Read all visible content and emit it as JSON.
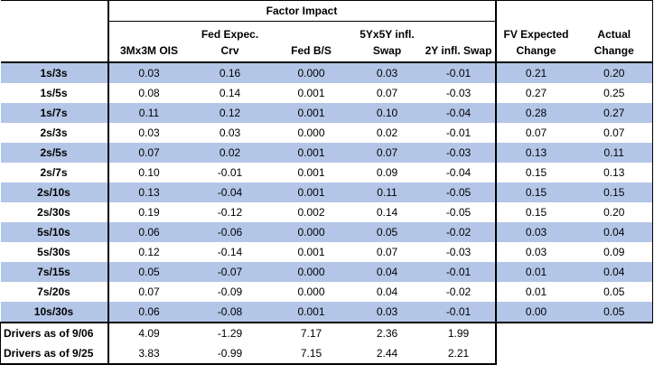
{
  "header": {
    "group_label": "Factor Impact",
    "columns": [
      "3Mx3M OIS",
      "Fed Expec.\nCrv",
      "Fed B/S",
      "5Yx5Y infl.\nSwap",
      "2Y infl. Swap",
      "FV Expected\nChange",
      "Actual\nChange"
    ],
    "col_lines": [
      [
        "3Mx3M OIS"
      ],
      [
        "Fed Expec.",
        "Crv"
      ],
      [
        "Fed B/S"
      ],
      [
        "5Yx5Y infl.",
        "Swap"
      ],
      [
        "2Y infl. Swap"
      ],
      [
        "FV Expected",
        "Change"
      ],
      [
        "Actual",
        "Change"
      ]
    ]
  },
  "rows": [
    {
      "label": "1s/3s",
      "values": [
        "0.03",
        "0.16",
        "0.000",
        "0.03",
        "-0.01",
        "0.21",
        "0.20"
      ]
    },
    {
      "label": "1s/5s",
      "values": [
        "0.08",
        "0.14",
        "0.001",
        "0.07",
        "-0.03",
        "0.27",
        "0.25"
      ]
    },
    {
      "label": "1s/7s",
      "values": [
        "0.11",
        "0.12",
        "0.001",
        "0.10",
        "-0.04",
        "0.28",
        "0.27"
      ]
    },
    {
      "label": "2s/3s",
      "values": [
        "0.03",
        "0.03",
        "0.000",
        "0.02",
        "-0.01",
        "0.07",
        "0.07"
      ]
    },
    {
      "label": "2s/5s",
      "values": [
        "0.07",
        "0.02",
        "0.001",
        "0.07",
        "-0.03",
        "0.13",
        "0.11"
      ]
    },
    {
      "label": "2s/7s",
      "values": [
        "0.10",
        "-0.01",
        "0.001",
        "0.09",
        "-0.04",
        "0.15",
        "0.13"
      ]
    },
    {
      "label": "2s/10s",
      "values": [
        "0.13",
        "-0.04",
        "0.001",
        "0.11",
        "-0.05",
        "0.15",
        "0.15"
      ]
    },
    {
      "label": "2s/30s",
      "values": [
        "0.19",
        "-0.12",
        "0.002",
        "0.14",
        "-0.05",
        "0.15",
        "0.20"
      ]
    },
    {
      "label": "5s/10s",
      "values": [
        "0.06",
        "-0.06",
        "0.000",
        "0.05",
        "-0.02",
        "0.03",
        "0.04"
      ]
    },
    {
      "label": "5s/30s",
      "values": [
        "0.12",
        "-0.14",
        "0.001",
        "0.07",
        "-0.03",
        "0.03",
        "0.09"
      ]
    },
    {
      "label": "7s/15s",
      "values": [
        "0.05",
        "-0.07",
        "0.000",
        "0.04",
        "-0.01",
        "0.01",
        "0.04"
      ]
    },
    {
      "label": "7s/20s",
      "values": [
        "0.07",
        "-0.09",
        "0.000",
        "0.04",
        "-0.02",
        "0.01",
        "0.05"
      ]
    },
    {
      "label": "10s/30s",
      "values": [
        "0.06",
        "-0.08",
        "0.001",
        "0.03",
        "-0.01",
        "0.00",
        "0.05"
      ]
    }
  ],
  "drivers": [
    {
      "label": "Drivers as of 9/06",
      "values": [
        "4.09",
        "-1.29",
        "7.17",
        "2.36",
        "1.99"
      ]
    },
    {
      "label": "Drivers as of 9/25",
      "values": [
        "3.83",
        "-0.99",
        "7.15",
        "2.44",
        "2.21"
      ]
    }
  ],
  "colors": {
    "band": "#b4c6e7",
    "border": "#000000"
  }
}
